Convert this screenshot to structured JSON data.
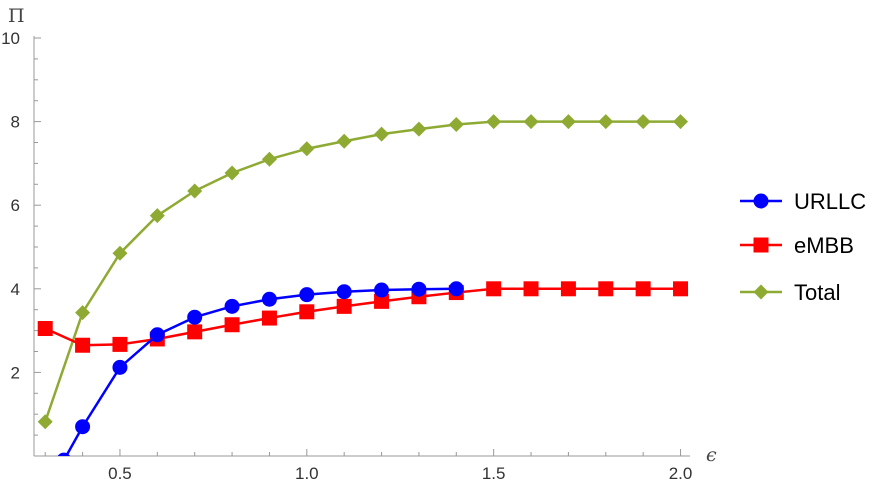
{
  "chart_data": {
    "type": "line",
    "xlabel": "ϵ",
    "ylabel": "Π",
    "xlim": [
      0.27,
      2.02
    ],
    "ylim": [
      0,
      10
    ],
    "x_ticks": [
      0.5,
      1.0,
      1.5,
      2.0
    ],
    "x_tick_labels": [
      "0.5",
      "1.0",
      "1.5",
      "2.0"
    ],
    "y_ticks": [
      2,
      4,
      6,
      8,
      10
    ],
    "y_tick_labels": [
      "2",
      "4",
      "6",
      "8",
      "10"
    ],
    "grid": false,
    "legend_position": "right",
    "series": [
      {
        "name": "URLLC",
        "color": "#0000ff",
        "marker": "circle",
        "x": [
          0.35,
          0.4,
          0.5,
          0.6,
          0.7,
          0.8,
          0.9,
          1.0,
          1.1,
          1.2,
          1.3,
          1.4
        ],
        "y": [
          -0.1,
          0.7,
          2.12,
          2.9,
          3.32,
          3.58,
          3.75,
          3.86,
          3.93,
          3.97,
          3.99,
          4.0
        ]
      },
      {
        "name": "eMBB",
        "color": "#ff0000",
        "marker": "square",
        "x": [
          0.3,
          0.4,
          0.5,
          0.6,
          0.7,
          0.8,
          0.9,
          1.0,
          1.1,
          1.2,
          1.3,
          1.4,
          1.5,
          1.6,
          1.7,
          1.8,
          1.9,
          2.0
        ],
        "y": [
          3.05,
          2.65,
          2.67,
          2.8,
          2.97,
          3.14,
          3.3,
          3.45,
          3.58,
          3.7,
          3.81,
          3.91,
          4.0,
          4.0,
          4.0,
          4.0,
          4.0,
          4.0
        ]
      },
      {
        "name": "Total",
        "color": "#8eaa33",
        "marker": "diamond",
        "x": [
          0.3,
          0.4,
          0.5,
          0.6,
          0.7,
          0.8,
          0.9,
          1.0,
          1.1,
          1.2,
          1.3,
          1.4,
          1.5,
          1.6,
          1.7,
          1.8,
          1.9,
          2.0
        ],
        "y": [
          0.82,
          3.43,
          4.85,
          5.75,
          6.34,
          6.77,
          7.1,
          7.35,
          7.53,
          7.7,
          7.82,
          7.93,
          8.0,
          8.0,
          8.0,
          8.0,
          8.0,
          8.0
        ]
      }
    ]
  }
}
